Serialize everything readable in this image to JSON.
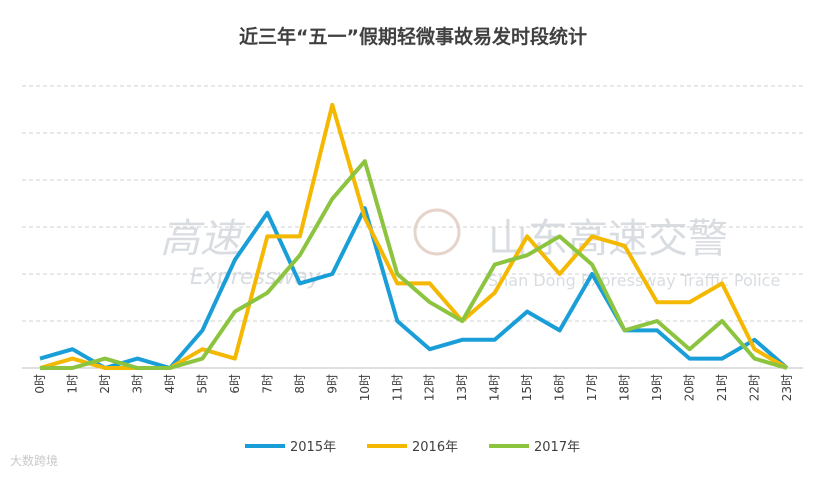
{
  "chart_data": {
    "type": "line",
    "title": "近三年“五一”假期轻微事故易发时段统计",
    "categories": [
      "0时",
      "1时",
      "2时",
      "3时",
      "4时",
      "5时",
      "6时",
      "7时",
      "8时",
      "9时",
      "10时",
      "11时",
      "12时",
      "13时",
      "14时",
      "15时",
      "16时",
      "17时",
      "18时",
      "19时",
      "20时",
      "21时",
      "22时",
      "23时"
    ],
    "series": [
      {
        "name": "2015年",
        "color": "#1a9ed8",
        "values": [
          2,
          4,
          0,
          2,
          0,
          8,
          23,
          33,
          18,
          20,
          34,
          10,
          4,
          6,
          6,
          12,
          8,
          20,
          8,
          8,
          2,
          2,
          6,
          0
        ]
      },
      {
        "name": "2016年",
        "color": "#f5b800",
        "values": [
          0,
          2,
          0,
          0,
          0,
          4,
          2,
          28,
          28,
          56,
          32,
          18,
          18,
          10,
          16,
          28,
          20,
          28,
          26,
          14,
          14,
          18,
          4,
          0
        ]
      },
      {
        "name": "2017年",
        "color": "#8cc43f",
        "values": [
          0,
          0,
          2,
          0,
          0,
          2,
          12,
          16,
          24,
          36,
          44,
          20,
          14,
          10,
          22,
          24,
          28,
          22,
          8,
          10,
          4,
          10,
          2,
          0
        ]
      }
    ],
    "ylim": [
      0,
      60
    ],
    "grid": true,
    "legend_position": "bottom"
  },
  "watermarks": {
    "brand_main": "高速",
    "brand_sub": "Expressway",
    "police_name": "山东高速交警",
    "police_sub": "Shan Dong Expressway Traffic Police",
    "corner": "大数跨境"
  }
}
